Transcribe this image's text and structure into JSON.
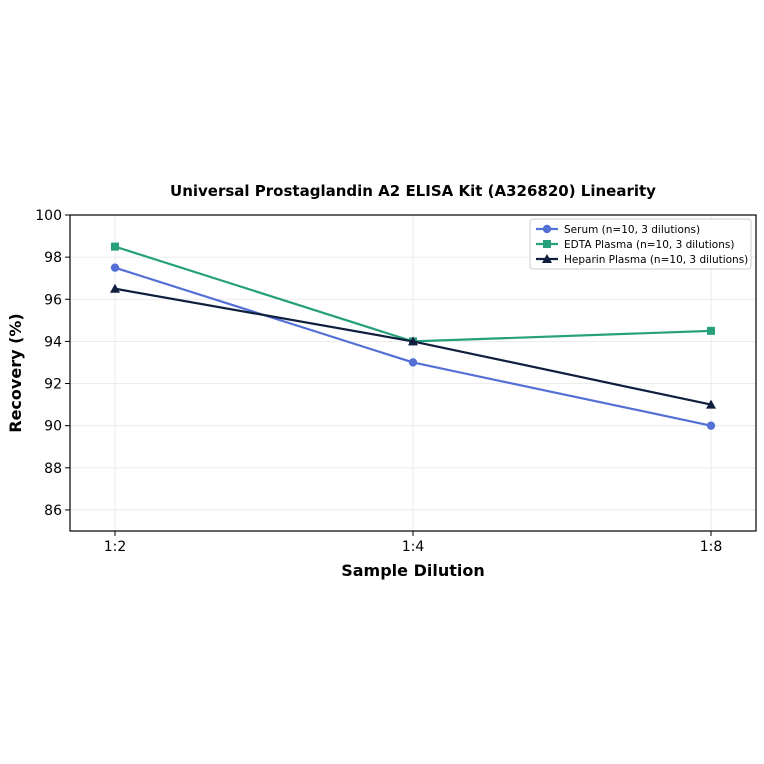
{
  "chart_data": {
    "type": "line",
    "title": "Universal Prostaglandin A2 ELISA Kit (A326820) Linearity",
    "xlabel": "Sample Dilution",
    "ylabel": "Recovery (%)",
    "categories": [
      "1:2",
      "1:4",
      "1:8"
    ],
    "ylim": [
      85,
      100
    ],
    "yticks": [
      86,
      88,
      90,
      92,
      94,
      96,
      98,
      100
    ],
    "grid": true,
    "legend_position": "top-right",
    "series": [
      {
        "name": "Serum (n=10, 3 dilutions)",
        "values": [
          97.5,
          93.0,
          90.0
        ],
        "color": "#5470d6",
        "marker": "circle"
      },
      {
        "name": "EDTA Plasma (n=10, 3 dilutions)",
        "values": [
          98.5,
          94.0,
          94.5
        ],
        "color": "#26a07a",
        "marker": "square"
      },
      {
        "name": "Heparin Plasma (n=10, 3 dilutions)",
        "values": [
          96.5,
          94.0,
          91.0
        ],
        "color": "#0f1f3d",
        "marker": "triangle"
      }
    ]
  }
}
